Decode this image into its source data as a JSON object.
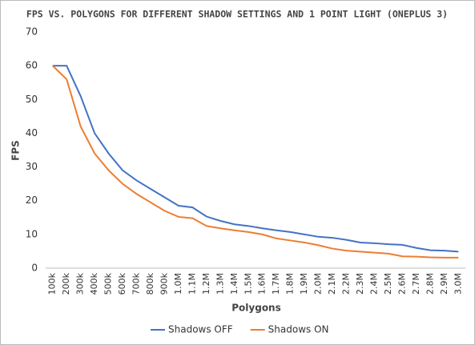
{
  "chart_data": {
    "type": "line",
    "title": "FPS VS. POLYGONS FOR DIFFERENT SHADOW SETTINGS AND 1 POINT LIGHT (ONEPLUS 3)",
    "x_label": "Polygons",
    "y_label": "FPS",
    "categories": [
      "100k",
      "200k",
      "300k",
      "400k",
      "500k",
      "600k",
      "700k",
      "800k",
      "900k",
      "1.0M",
      "1.1M",
      "1.2M",
      "1.3M",
      "1.4M",
      "1.5M",
      "1.6M",
      "1.7M",
      "1.8M",
      "1.9M",
      "2.0M",
      "2.1M",
      "2.2M",
      "2.3M",
      "2.4M",
      "2.5M",
      "2.6M",
      "2.7M",
      "2.8M",
      "2.9M",
      "3.0M"
    ],
    "series": [
      {
        "name": "Shadows OFF",
        "color": "#4472c4",
        "values": [
          60,
          60,
          51,
          40,
          34,
          29,
          26,
          23.5,
          21,
          18.5,
          18,
          15.3,
          14,
          13,
          12.5,
          11.8,
          11.2,
          10.7,
          10,
          9.3,
          9,
          8.4,
          7.6,
          7.4,
          7.1,
          6.9,
          6,
          5.3,
          5.2,
          4.9
        ]
      },
      {
        "name": "Shadows ON",
        "color": "#ed7d31",
        "values": [
          60,
          56,
          42,
          34,
          29,
          25,
          22,
          19.5,
          17,
          15.2,
          14.8,
          12.5,
          11.8,
          11.2,
          10.7,
          10,
          8.8,
          8.2,
          7.6,
          6.8,
          5.8,
          5.2,
          4.9,
          4.6,
          4.3,
          3.5,
          3.4,
          3.2,
          3.1,
          3.1
        ]
      }
    ],
    "ylim": [
      0,
      70
    ],
    "yticks": [
      0,
      10,
      20,
      30,
      40,
      50,
      60,
      70
    ],
    "grid": false,
    "legend": "bottom"
  }
}
